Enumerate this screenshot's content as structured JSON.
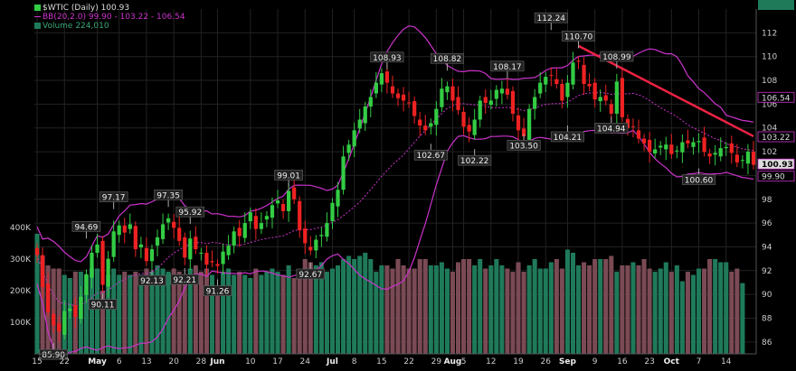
{
  "legend": {
    "price": "$WTIC (Daily) 100.93",
    "bb": "BB(20,2.0) 99.90 - 103.22 - 106.54",
    "volume": "Volume 224,010"
  },
  "colors": {
    "background": "#000000",
    "up": "#33cc44",
    "down": "#ee2222",
    "bands": "#cc33cc",
    "volume_up": "#1f7a5a",
    "volume_down": "#7a4a55",
    "grid": "#222222",
    "trendline": "#ee2244",
    "text": "#cccccc"
  },
  "chart_data": {
    "type": "candlestick",
    "title": "$WTIC (Daily)",
    "ylim": [
      85,
      114
    ],
    "yticks": [
      86,
      88,
      90,
      92,
      94,
      96,
      98,
      100,
      102,
      104,
      106,
      108,
      110,
      112
    ],
    "volume_ticks": [
      {
        "label": "100K",
        "value": 100000
      },
      {
        "label": "200K",
        "value": 200000
      },
      {
        "label": "300K",
        "value": 300000
      },
      {
        "label": "400K",
        "value": 400000
      }
    ],
    "x_labels": [
      {
        "label": "15",
        "i": 0
      },
      {
        "label": "22",
        "i": 5
      },
      {
        "label": "May",
        "i": 11
      },
      {
        "label": "6",
        "i": 15
      },
      {
        "label": "13",
        "i": 20
      },
      {
        "label": "20",
        "i": 25
      },
      {
        "label": "28",
        "i": 30
      },
      {
        "label": "Jun",
        "i": 33
      },
      {
        "label": "10",
        "i": 39
      },
      {
        "label": "17",
        "i": 44
      },
      {
        "label": "24",
        "i": 49
      },
      {
        "label": "Jul",
        "i": 54
      },
      {
        "label": "8",
        "i": 58
      },
      {
        "label": "15",
        "i": 63
      },
      {
        "label": "22",
        "i": 68
      },
      {
        "label": "29",
        "i": 73
      },
      {
        "label": "Aug",
        "i": 76
      },
      {
        "label": "5",
        "i": 78
      },
      {
        "label": "12",
        "i": 83
      },
      {
        "label": "19",
        "i": 88
      },
      {
        "label": "26",
        "i": 93
      },
      {
        "label": "Sep",
        "i": 97
      },
      {
        "label": "9",
        "i": 102
      },
      {
        "label": "16",
        "i": 107
      },
      {
        "label": "23",
        "i": 112
      },
      {
        "label": "Oct",
        "i": 116
      },
      {
        "label": "7",
        "i": 121
      },
      {
        "label": "14",
        "i": 126
      }
    ],
    "last_price_labels": [
      {
        "label": "106.54",
        "value": 106.54
      },
      {
        "label": "103.22",
        "value": 103.22
      },
      {
        "label": "100.93",
        "value": 100.93
      },
      {
        "label": "99.90",
        "value": 99.9
      }
    ],
    "last_volume_label": "224010",
    "annotations": [
      {
        "label": "85.90",
        "i": 3,
        "value": 85.9,
        "pos": "below"
      },
      {
        "label": "90.11",
        "i": 12,
        "value": 90.11,
        "pos": "below"
      },
      {
        "label": "94.69",
        "i": 9,
        "value": 94.69,
        "pos": "above"
      },
      {
        "label": "97.17",
        "i": 14,
        "value": 97.17,
        "pos": "above"
      },
      {
        "label": "92.13",
        "i": 21,
        "value": 92.13,
        "pos": "below"
      },
      {
        "label": "97.35",
        "i": 24,
        "value": 97.35,
        "pos": "above"
      },
      {
        "label": "95.92",
        "i": 28,
        "value": 95.92,
        "pos": "above"
      },
      {
        "label": "92.21",
        "i": 27,
        "value": 92.21,
        "pos": "below"
      },
      {
        "label": "91.26",
        "i": 33,
        "value": 91.26,
        "pos": "below"
      },
      {
        "label": "99.01",
        "i": 46,
        "value": 99.01,
        "pos": "above"
      },
      {
        "label": "92.67",
        "i": 50,
        "value": 92.67,
        "pos": "below"
      },
      {
        "label": "108.93",
        "i": 64,
        "value": 108.93,
        "pos": "above"
      },
      {
        "label": "102.67",
        "i": 72,
        "value": 102.67,
        "pos": "below"
      },
      {
        "label": "108.82",
        "i": 75,
        "value": 108.82,
        "pos": "above"
      },
      {
        "label": "102.22",
        "i": 80,
        "value": 102.22,
        "pos": "below"
      },
      {
        "label": "108.17",
        "i": 86,
        "value": 108.17,
        "pos": "above"
      },
      {
        "label": "103.50",
        "i": 89,
        "value": 103.5,
        "pos": "below"
      },
      {
        "label": "112.24",
        "i": 94,
        "value": 112.24,
        "pos": "above"
      },
      {
        "label": "104.21",
        "i": 97,
        "value": 104.21,
        "pos": "below"
      },
      {
        "label": "110.70",
        "i": 99,
        "value": 110.7,
        "pos": "above"
      },
      {
        "label": "108.99",
        "i": 106,
        "value": 108.99,
        "pos": "above"
      },
      {
        "label": "104.94",
        "i": 105,
        "value": 104.94,
        "pos": "below"
      },
      {
        "label": "100.60",
        "i": 121,
        "value": 100.6,
        "pos": "below"
      }
    ],
    "trendline": [
      {
        "i": 99,
        "value": 110.9
      },
      {
        "i": 131,
        "value": 103.3
      }
    ],
    "closes": [
      93.3,
      90.6,
      88.5,
      87.4,
      86.9,
      88.6,
      88.8,
      88.1,
      89.8,
      91.7,
      93.5,
      94.2,
      90.8,
      93.0,
      95.3,
      95.8,
      95.2,
      95.9,
      93.8,
      94.2,
      92.8,
      93.8,
      94.8,
      95.9,
      96.4,
      95.6,
      94.5,
      93.1,
      94.7,
      93.8,
      93.5,
      92.5,
      92.7,
      92.4,
      93.6,
      94.1,
      95.3,
      94.9,
      96.0,
      96.9,
      95.5,
      96.0,
      96.6,
      97.5,
      97.9,
      97.0,
      98.7,
      98.0,
      95.4,
      94.3,
      93.7,
      94.6,
      95.0,
      96.0,
      97.7,
      98.8,
      101.6,
      102.6,
      103.8,
      104.7,
      105.8,
      106.6,
      107.8,
      108.6,
      107.8,
      106.9,
      106.5,
      106.3,
      106.1,
      105.0,
      104.2,
      103.8,
      104.4,
      105.6,
      107.3,
      107.5,
      106.3,
      105.5,
      104.1,
      103.7,
      104.7,
      106.3,
      106.1,
      106.3,
      107.2,
      107.3,
      106.8,
      105.2,
      103.8,
      103.3,
      105.6,
      106.6,
      107.8,
      108.3,
      108.4,
      107.7,
      106.3,
      107.8,
      109.5,
      109.6,
      107.7,
      107.5,
      106.4,
      106.6,
      106.3,
      105.2,
      107.9,
      104.9,
      104.0,
      104.1,
      103.1,
      102.7,
      102.0,
      102.2,
      102.5,
      102.6,
      101.8,
      102.1,
      102.8,
      102.7,
      102.8,
      102.9,
      102.0,
      101.6,
      101.9,
      102.3,
      102.4,
      101.9,
      101.1,
      101.3,
      102.0,
      100.9
    ],
    "volumes": [
      380000,
      310000,
      280000,
      270000,
      270000,
      250000,
      240000,
      260000,
      260000,
      250000,
      270000,
      270000,
      200000,
      250000,
      270000,
      250000,
      260000,
      250000,
      260000,
      250000,
      270000,
      260000,
      280000,
      270000,
      260000,
      270000,
      260000,
      250000,
      270000,
      280000,
      260000,
      270000,
      250000,
      210000,
      260000,
      270000,
      250000,
      260000,
      250000,
      240000,
      270000,
      250000,
      260000,
      270000,
      260000,
      250000,
      280000,
      240000,
      240000,
      300000,
      290000,
      280000,
      290000,
      260000,
      270000,
      280000,
      300000,
      310000,
      300000,
      310000,
      320000,
      300000,
      260000,
      280000,
      280000,
      270000,
      300000,
      280000,
      270000,
      270000,
      300000,
      300000,
      280000,
      280000,
      290000,
      270000,
      260000,
      290000,
      300000,
      300000,
      280000,
      300000,
      270000,
      280000,
      300000,
      280000,
      270000,
      260000,
      290000,
      260000,
      280000,
      300000,
      270000,
      270000,
      290000,
      300000,
      270000,
      330000,
      320000,
      280000,
      290000,
      280000,
      300000,
      300000,
      300000,
      310000,
      260000,
      280000,
      280000,
      290000,
      280000,
      300000,
      270000,
      260000,
      270000,
      290000,
      260000,
      280000,
      230000,
      260000,
      250000,
      270000,
      270000,
      300000,
      300000,
      290000,
      290000,
      260000,
      270000,
      224010
    ]
  }
}
